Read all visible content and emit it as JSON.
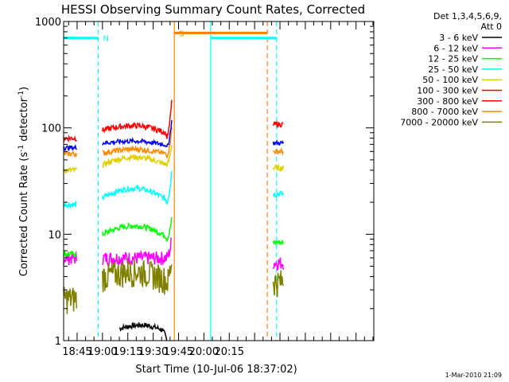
{
  "chart_data": {
    "type": "line",
    "title": "HESSI Observing Summary Count Rates, Corrected",
    "xlabel": "Start Time (10-Jul-06 18:37:02)",
    "ylabel_main": "Corrected Count Rate (s",
    "ylabel_sup1": "-1",
    "ylabel_mid": " detector",
    "ylabel_sup2": "-1",
    "ylabel_end": ")",
    "yscale": "log",
    "ylim": [
      1,
      1000
    ],
    "yticks": [
      {
        "v": 1,
        "label": "1"
      },
      {
        "v": 10,
        "label": "10"
      },
      {
        "v": 100,
        "label": "100"
      },
      {
        "v": 1000,
        "label": "1000"
      }
    ],
    "xlim_minutes": [
      37.03,
      220.5
    ],
    "xticks": [
      {
        "m": 45,
        "label": "18:45"
      },
      {
        "m": 60,
        "label": "19:00"
      },
      {
        "m": 75,
        "label": "19:15"
      },
      {
        "m": 90,
        "label": "19:30"
      },
      {
        "m": 105,
        "label": "19:45"
      },
      {
        "m": 120,
        "label": "20:00"
      },
      {
        "m": 135,
        "label": "20:15"
      }
    ],
    "legend_header": [
      "Det 1,3,4,5,6,9,",
      "Att 0"
    ],
    "legend_placement": "right",
    "series": [
      {
        "name": "3 - 6 keV",
        "color": "#000000",
        "level": [
          1,
          1.3,
          1.4,
          1.2,
          1
        ],
        "segments": [
          [
            70,
            98
          ]
        ]
      },
      {
        "name": "6 - 12 keV",
        "color": "#ff00ff",
        "level": [
          6,
          6,
          6,
          6,
          9
        ],
        "segments": [
          [
            37,
            45
          ],
          [
            60,
            101
          ],
          [
            161,
            167
          ]
        ]
      },
      {
        "name": "12 - 25 keV",
        "color": "#00ff00",
        "level": [
          6.5,
          10,
          12,
          9,
          14
        ],
        "segments": [
          [
            37,
            45
          ],
          [
            60,
            101
          ],
          [
            161,
            167
          ]
        ]
      },
      {
        "name": "25 - 50 keV",
        "color": "#00ffff",
        "level": [
          19,
          22,
          27,
          20,
          40
        ],
        "segments": [
          [
            37,
            45
          ],
          [
            60,
            101
          ],
          [
            161,
            167
          ]
        ]
      },
      {
        "name": "50 - 100 keV",
        "color": "#e0d000",
        "level": [
          40,
          45,
          53,
          45,
          70
        ],
        "segments": [
          [
            37,
            45
          ],
          [
            60,
            101
          ],
          [
            161,
            167
          ]
        ]
      },
      {
        "name": "100 - 300 keV",
        "color": "#ff0000",
        "level": [
          80,
          95,
          105,
          82,
          180
        ],
        "segments": [
          [
            37,
            45
          ],
          [
            60,
            101
          ],
          [
            161,
            167
          ]
        ]
      },
      {
        "name": "300 - 800 keV",
        "color": "#ff0000",
        "level": [
          80,
          95,
          105,
          82,
          180
        ],
        "segments": []
      },
      {
        "name": "800 - 7000 keV",
        "color": "#ff8c00",
        "level": [
          57,
          58,
          63,
          55,
          100
        ],
        "segments": [
          [
            37,
            45
          ],
          [
            60,
            101
          ],
          [
            161,
            167
          ]
        ]
      },
      {
        "name": "7000 - 20000 keV",
        "color": "#808000",
        "level": [
          2.5,
          4,
          4.5,
          3.5,
          6
        ],
        "segments": [
          [
            37,
            45
          ],
          [
            60,
            101
          ],
          [
            161,
            167
          ]
        ]
      }
    ],
    "blue_series": {
      "color": "#0000ff",
      "level": [
        65,
        72,
        75,
        65,
        120
      ]
    },
    "flags": [
      {
        "label": "",
        "color": "#00ffff",
        "start": 37.03,
        "end": 57.5,
        "value": 700
      },
      {
        "label": "N",
        "color": "#00ffff",
        "start": 57.5,
        "end": 57.5,
        "value": 700
      },
      {
        "label": "S",
        "color": "#ff8000",
        "start": 102.5,
        "end": 157.5,
        "value": 780
      },
      {
        "label": "",
        "color": "#00ffff",
        "start": 124,
        "end": 163,
        "value": 700
      }
    ],
    "vlines": [
      {
        "m": 57.5,
        "color": "#00ffff",
        "dash": true
      },
      {
        "m": 102.5,
        "color": "#ff8000",
        "dash": false
      },
      {
        "m": 124,
        "color": "#00ffff",
        "dash": false
      },
      {
        "m": 157.5,
        "color": "#ff8000",
        "dash": true
      },
      {
        "m": 163,
        "color": "#00ffff",
        "dash": true
      }
    ],
    "footer": "1-Mar-2010 21:09"
  }
}
